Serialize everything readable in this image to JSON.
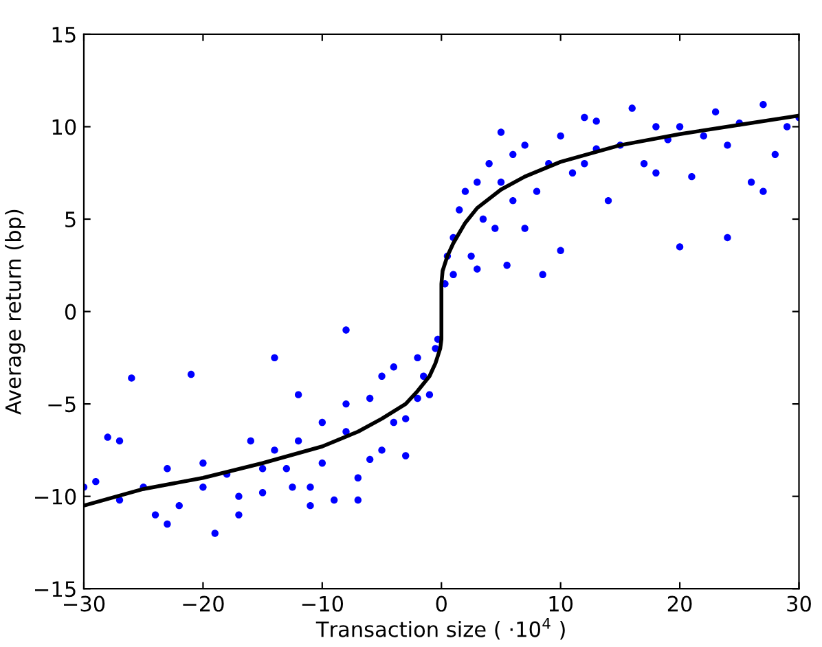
{
  "chart_data": {
    "type": "scatter",
    "xlabel": "Transaction size ( ·10$^{4}$ )",
    "ylabel": "Average return (bp)",
    "xlim": [
      -30,
      30
    ],
    "ylim": [
      -15,
      15
    ],
    "xticks": [
      {
        "value": -30,
        "label": "−30"
      },
      {
        "value": -20,
        "label": "−20"
      },
      {
        "value": -10,
        "label": "−10"
      },
      0,
      10,
      20,
      30
    ],
    "yticks": [
      {
        "value": -15,
        "label": "−15"
      },
      {
        "value": -10,
        "label": "−10"
      },
      {
        "value": -5,
        "label": "−5"
      },
      0,
      5,
      10,
      15
    ],
    "grid": false,
    "marker": "circle",
    "series": [
      {
        "color": "#0000ff",
        "x": [
          -30,
          -29,
          -28,
          -27,
          -26,
          -25,
          -24,
          -23,
          -22,
          -21,
          -20,
          -19,
          -18,
          -17,
          -16,
          -15,
          -14,
          -13,
          -12,
          -11,
          -10,
          -9,
          -8,
          -8,
          -7,
          -6,
          -5,
          -4,
          -3,
          -2,
          -1,
          -0.5,
          -2,
          -5,
          -8,
          -10,
          -12,
          -14,
          -6,
          -3,
          -1.5,
          -0.3,
          -27,
          -23,
          -17,
          -11,
          -7,
          -4,
          -20,
          -15,
          -12.5,
          0.3,
          0.5,
          1,
          1.5,
          2,
          2.5,
          3,
          3.5,
          4,
          4.5,
          5,
          5.5,
          6,
          7,
          7,
          8,
          9,
          10,
          10,
          11,
          12,
          13,
          14,
          15,
          16,
          17,
          18,
          19,
          20,
          20,
          21,
          22,
          23,
          24,
          24,
          25,
          26,
          27,
          28,
          29,
          30,
          8.5,
          3,
          1,
          6,
          12,
          18,
          27,
          5,
          13
        ],
        "values": [
          -9.5,
          -9.2,
          -6.8,
          -10.2,
          -3.6,
          -9.5,
          -11,
          -8.5,
          -10.5,
          -3.4,
          -9.5,
          -12,
          -8.8,
          -10,
          -7,
          -9.8,
          -2.5,
          -8.5,
          -7,
          -9.5,
          -8.2,
          -10.2,
          -1,
          -6.5,
          -9,
          -4.7,
          -7.5,
          -6,
          -7.8,
          -4.7,
          -4.5,
          -2,
          -2.5,
          -3.5,
          -5,
          -6,
          -4.5,
          -7.5,
          -8,
          -5.8,
          -3.5,
          -1.5,
          -7,
          -11.5,
          -11,
          -10.5,
          -10.2,
          -3,
          -8.2,
          -8.5,
          -9.5,
          1.5,
          3,
          4,
          5.5,
          6.5,
          3,
          7,
          5,
          8,
          4.5,
          7,
          2.5,
          8.5,
          9,
          4.5,
          6.5,
          8,
          9.5,
          3.3,
          7.5,
          10.5,
          8.8,
          6,
          9,
          11,
          8,
          10,
          9.3,
          3.5,
          10,
          7.3,
          9.5,
          10.8,
          4,
          9,
          10.2,
          7,
          11.2,
          8.5,
          10,
          10.5,
          2,
          2.3,
          2,
          6,
          8,
          7.5,
          6.5,
          9.7,
          10.3
        ]
      },
      {
        "type": "line",
        "color": "#000000",
        "marker": "none",
        "x": [
          -30,
          -25,
          -20,
          -15,
          -10,
          -7,
          -5,
          -3,
          -2,
          -1,
          -0.5,
          -0.1,
          0,
          0,
          0.1,
          0.5,
          1,
          2,
          3,
          5,
          7,
          10,
          15,
          20,
          25,
          30
        ],
        "values": [
          -10.5,
          -9.6,
          -9,
          -8.2,
          -7.3,
          -6.5,
          -5.8,
          -5,
          -4.3,
          -3.5,
          -2.8,
          -2,
          -1.5,
          1.5,
          2.2,
          3,
          3.7,
          4.8,
          5.6,
          6.6,
          7.3,
          8.1,
          9.0,
          9.6,
          10.1,
          10.6
        ]
      }
    ]
  }
}
